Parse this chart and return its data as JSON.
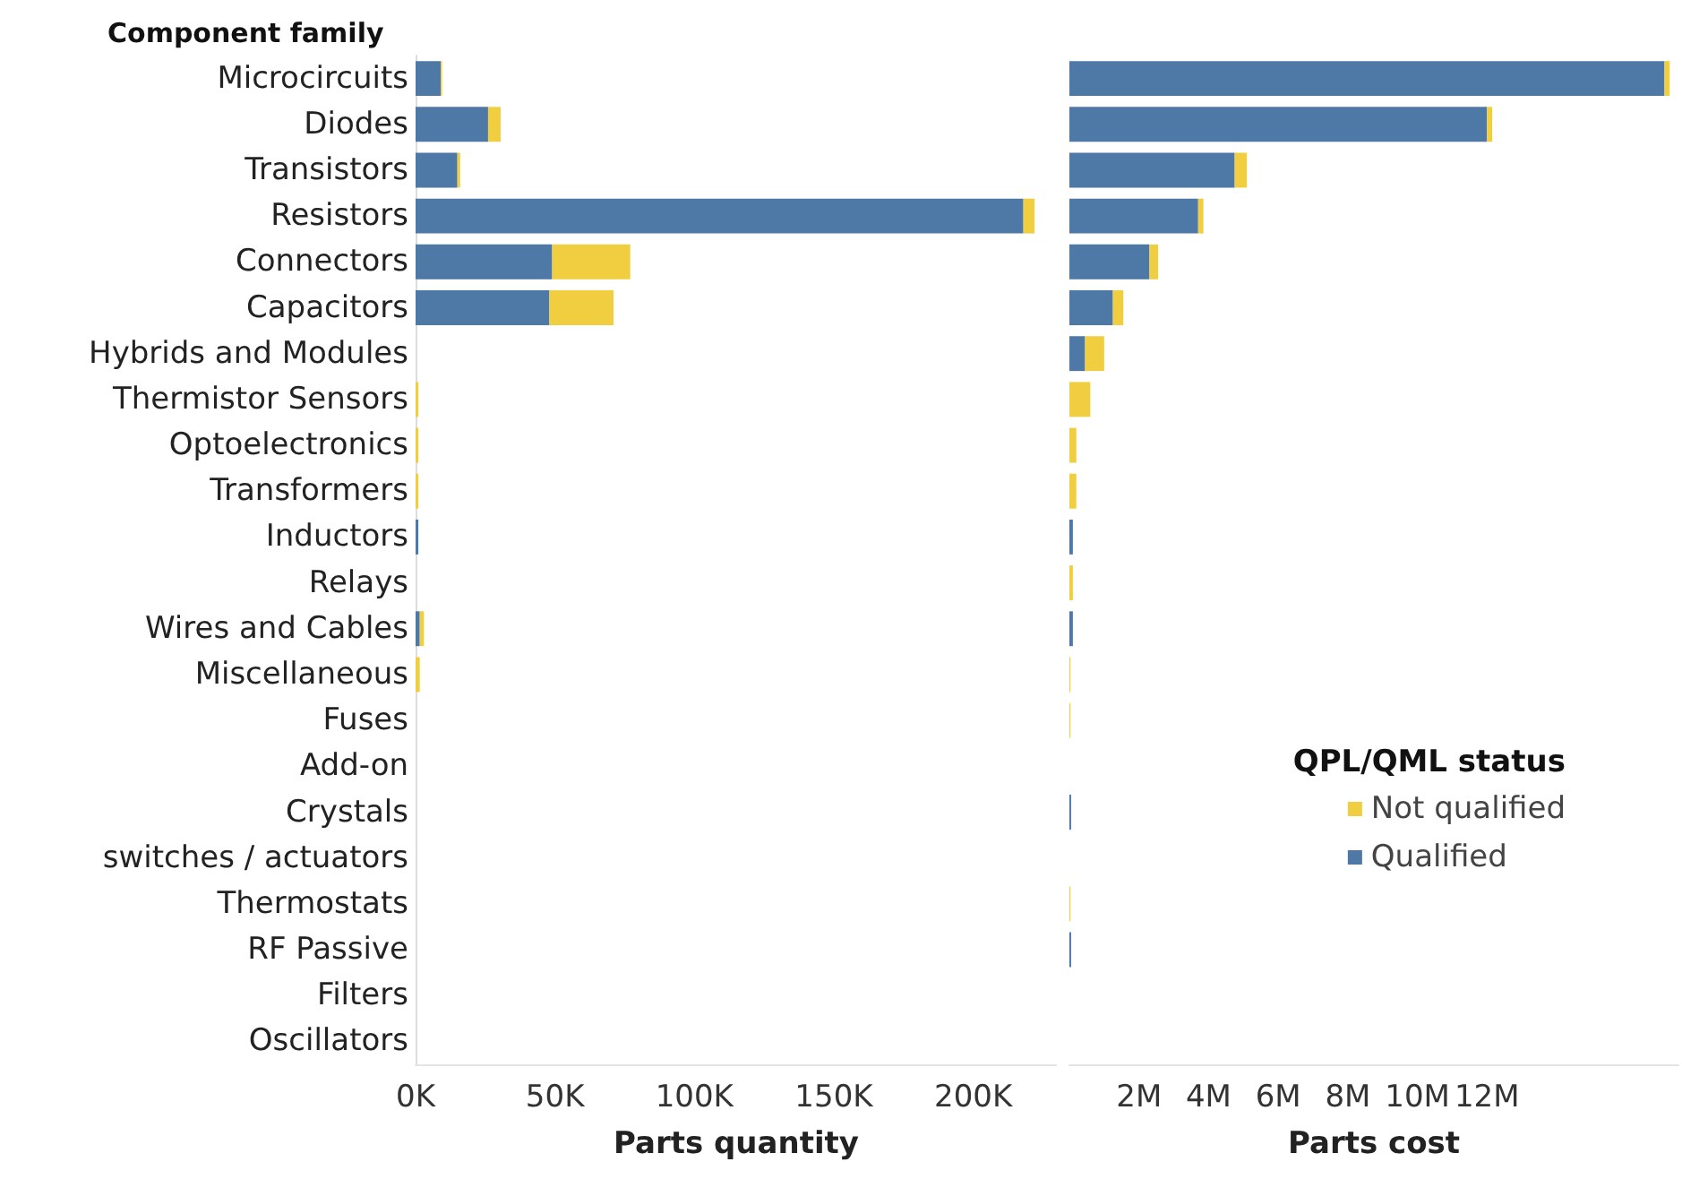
{
  "chart_data": [
    {
      "type": "bar",
      "orientation": "horizontal",
      "stacked": true,
      "ylabel": "Component family",
      "xlabel": "Parts quantity",
      "categories": [
        "Microcircuits",
        "Diodes",
        "Transistors",
        "Resistors",
        "Connectors",
        "Capacitors",
        "Hybrids and Modules",
        "Thermistor Sensors",
        "Optoelectronics",
        "Transformers",
        "Inductors",
        "Relays",
        "Wires and Cables",
        "Miscellaneous",
        "Fuses",
        "Add-on",
        "Crystals",
        "switches / actuators",
        "Thermostats",
        "RF Passive",
        "Filters",
        "Oscillators"
      ],
      "series": [
        {
          "color": "#4e79a7",
          "values": [
            9000,
            26000,
            15000,
            218000,
            49000,
            48000,
            0,
            0,
            0,
            0,
            1000,
            0,
            1500,
            0,
            0,
            0,
            0,
            0,
            0,
            0,
            0,
            0
          ]
        },
        {
          "color": "#f1ce3f",
          "values": [
            500,
            4500,
            1000,
            4000,
            28000,
            23000,
            0,
            1000,
            1000,
            1000,
            0,
            0,
            1500,
            1500,
            0,
            0,
            0,
            0,
            0,
            0,
            0,
            0
          ]
        }
      ],
      "xlim": [
        0,
        230000
      ],
      "xticks": [
        {
          "value": 0,
          "label": "0K"
        },
        {
          "value": 50000,
          "label": "50K"
        },
        {
          "value": 100000,
          "label": "100K"
        },
        {
          "value": 150000,
          "label": "150K"
        },
        {
          "value": 200000,
          "label": "200K"
        }
      ],
      "legend": false
    },
    {
      "type": "bar",
      "orientation": "horizontal",
      "stacked": true,
      "xlabel": "Parts cost",
      "legend_title": "QPL/QML status",
      "categories": [
        null,
        null,
        null,
        null,
        null,
        null,
        null,
        null,
        null,
        null,
        null,
        null,
        null,
        null,
        null,
        null,
        null,
        null,
        null,
        null,
        null,
        null
      ],
      "series": [
        {
          "name": "Qualified",
          "color": "#4e79a7",
          "values": [
            17100000,
            12000000,
            4750000,
            3700000,
            2300000,
            1250000,
            450000,
            0,
            0,
            0,
            100000,
            0,
            100000,
            0,
            0,
            0,
            50000,
            0,
            0,
            50000,
            0,
            0
          ]
        },
        {
          "name": "Not qualified",
          "color": "#f1ce3f",
          "values": [
            150000,
            150000,
            350000,
            150000,
            250000,
            300000,
            550000,
            600000,
            200000,
            200000,
            0,
            100000,
            0,
            30000,
            30000,
            0,
            0,
            0,
            30000,
            0,
            0,
            0
          ]
        }
      ],
      "xlim": [
        0,
        17500000
      ],
      "xticks": [
        {
          "value": 2000000,
          "label": "2M"
        },
        {
          "value": 4000000,
          "label": "4M"
        },
        {
          "value": 6000000,
          "label": "6M"
        },
        {
          "value": 8000000,
          "label": "8M"
        },
        {
          "value": 10000000,
          "label": "10M"
        },
        {
          "value": 12000000,
          "label": "12M"
        }
      ],
      "legend": "bottom right"
    }
  ]
}
